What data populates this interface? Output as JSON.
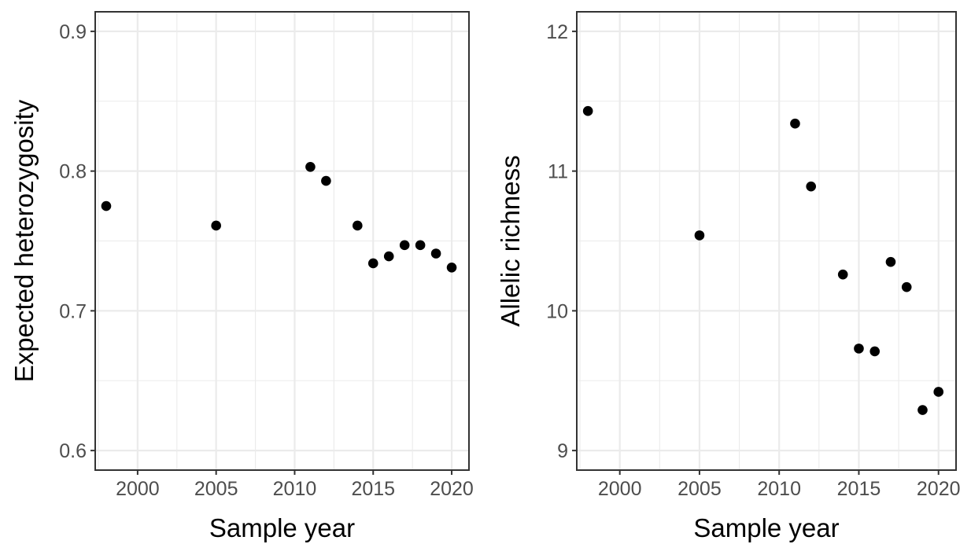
{
  "chart_data": [
    {
      "type": "scatter",
      "xlabel": "Sample year",
      "ylabel": "Expected heterozygosity",
      "xlim": [
        1997.3,
        2021.1
      ],
      "ylim": [
        0.586,
        0.914
      ],
      "x_ticks": [
        2000,
        2005,
        2010,
        2015,
        2020
      ],
      "x_tick_labels": [
        "2000",
        "2005",
        "2010",
        "2015",
        "2020"
      ],
      "y_ticks": [
        0.6,
        0.7,
        0.8,
        0.9
      ],
      "y_tick_labels": [
        "0.6",
        "0.7",
        "0.8",
        "0.9"
      ],
      "grid": true,
      "x": [
        1998,
        2005,
        2011,
        2012,
        2014,
        2015,
        2016,
        2017,
        2018,
        2019,
        2020
      ],
      "y": [
        0.775,
        0.761,
        0.803,
        0.793,
        0.761,
        0.734,
        0.739,
        0.747,
        0.747,
        0.741,
        0.731
      ]
    },
    {
      "type": "scatter",
      "xlabel": "Sample year",
      "ylabel": "Allelic richness",
      "xlim": [
        1997.3,
        2021.1
      ],
      "ylim": [
        8.86,
        12.14
      ],
      "x_ticks": [
        2000,
        2005,
        2010,
        2015,
        2020
      ],
      "x_tick_labels": [
        "2000",
        "2005",
        "2010",
        "2015",
        "2020"
      ],
      "y_ticks": [
        9,
        10,
        11,
        12
      ],
      "y_tick_labels": [
        "9",
        "10",
        "11",
        "12"
      ],
      "grid": true,
      "x": [
        1998,
        2005,
        2011,
        2012,
        2014,
        2015,
        2016,
        2017,
        2018,
        2019,
        2020
      ],
      "y": [
        11.43,
        10.54,
        11.34,
        10.89,
        10.26,
        9.73,
        9.71,
        10.35,
        10.17,
        9.29,
        9.42
      ]
    }
  ]
}
